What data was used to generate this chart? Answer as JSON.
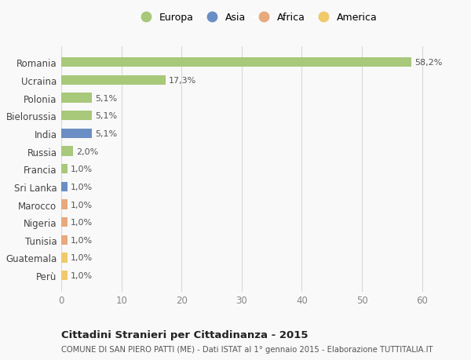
{
  "countries": [
    "Romania",
    "Ucraina",
    "Polonia",
    "Bielorussia",
    "India",
    "Russia",
    "Francia",
    "Sri Lanka",
    "Marocco",
    "Nigeria",
    "Tunisia",
    "Guatemala",
    "Perù"
  ],
  "values": [
    58.2,
    17.3,
    5.1,
    5.1,
    5.1,
    2.0,
    1.0,
    1.0,
    1.0,
    1.0,
    1.0,
    1.0,
    1.0
  ],
  "labels": [
    "58,2%",
    "17,3%",
    "5,1%",
    "5,1%",
    "5,1%",
    "2,0%",
    "1,0%",
    "1,0%",
    "1,0%",
    "1,0%",
    "1,0%",
    "1,0%",
    "1,0%"
  ],
  "continents": [
    "Europa",
    "Europa",
    "Europa",
    "Europa",
    "Asia",
    "Europa",
    "Europa",
    "Asia",
    "Africa",
    "Africa",
    "Africa",
    "America",
    "America"
  ],
  "colors": {
    "Europa": "#a8c87a",
    "Asia": "#6b8fc4",
    "Africa": "#e8a97c",
    "America": "#f0c96a"
  },
  "legend_order": [
    "Europa",
    "Asia",
    "Africa",
    "America"
  ],
  "xlim": [
    0,
    65
  ],
  "xticks": [
    0,
    10,
    20,
    30,
    40,
    50,
    60
  ],
  "title": "Cittadini Stranieri per Cittadinanza - 2015",
  "subtitle": "COMUNE DI SAN PIERO PATTI (ME) - Dati ISTAT al 1° gennaio 2015 - Elaborazione TUTTITALIA.IT",
  "bg_color": "#f9f9f9",
  "grid_color": "#d8d8d8",
  "bar_height": 0.55
}
